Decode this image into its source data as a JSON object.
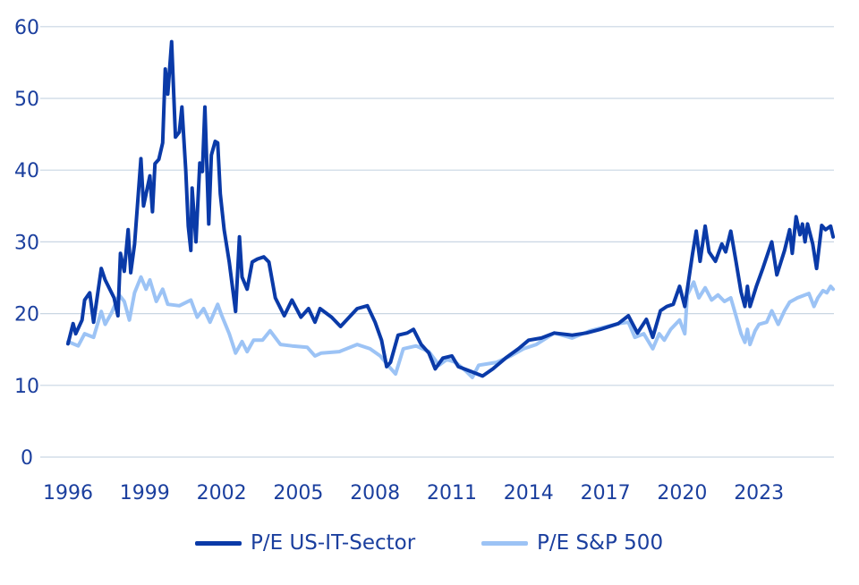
{
  "chart_data": {
    "type": "line",
    "title": "",
    "xlabel": "",
    "ylabel": "",
    "xlim": [
      1996,
      2025.9
    ],
    "ylim": [
      0,
      60
    ],
    "x_ticks": [
      "1996",
      "1999",
      "2002",
      "2005",
      "2008",
      "2011",
      "2014",
      "2017",
      "2020",
      "2023"
    ],
    "y_ticks": [
      "0",
      "10",
      "20",
      "30",
      "40",
      "50",
      "60"
    ],
    "grid": "horizontal",
    "legend_position": "bottom",
    "series": [
      {
        "name": "P/E US-IT-Sector",
        "color": "#0a3aa8",
        "points": [
          [
            1996.0,
            15.8
          ],
          [
            1996.2,
            18.6
          ],
          [
            1996.3,
            17.2
          ],
          [
            1996.55,
            19.1
          ],
          [
            1996.65,
            21.9
          ],
          [
            1996.85,
            22.9
          ],
          [
            1997.0,
            18.8
          ],
          [
            1997.3,
            26.3
          ],
          [
            1997.45,
            24.7
          ],
          [
            1997.8,
            22.2
          ],
          [
            1997.95,
            19.7
          ],
          [
            1998.05,
            28.4
          ],
          [
            1998.2,
            25.9
          ],
          [
            1998.35,
            31.7
          ],
          [
            1998.45,
            25.7
          ],
          [
            1998.6,
            29.7
          ],
          [
            1998.85,
            41.6
          ],
          [
            1998.95,
            35.0
          ],
          [
            1999.2,
            39.2
          ],
          [
            1999.3,
            34.2
          ],
          [
            1999.4,
            40.9
          ],
          [
            1999.55,
            41.5
          ],
          [
            1999.7,
            43.8
          ],
          [
            1999.8,
            54.1
          ],
          [
            1999.9,
            50.6
          ],
          [
            2000.05,
            57.9
          ],
          [
            2000.2,
            44.6
          ],
          [
            2000.35,
            45.3
          ],
          [
            2000.45,
            48.8
          ],
          [
            2000.6,
            40.0
          ],
          [
            2000.7,
            32.2
          ],
          [
            2000.8,
            28.8
          ],
          [
            2000.85,
            37.5
          ],
          [
            2001.0,
            30.0
          ],
          [
            2001.15,
            41.0
          ],
          [
            2001.25,
            39.8
          ],
          [
            2001.35,
            48.8
          ],
          [
            2001.5,
            32.5
          ],
          [
            2001.6,
            42.1
          ],
          [
            2001.75,
            44.0
          ],
          [
            2001.85,
            43.8
          ],
          [
            2001.95,
            36.7
          ],
          [
            2002.1,
            31.7
          ],
          [
            2002.3,
            27.2
          ],
          [
            2002.55,
            20.3
          ],
          [
            2002.7,
            30.7
          ],
          [
            2002.8,
            25.1
          ],
          [
            2003.0,
            23.4
          ],
          [
            2003.2,
            27.2
          ],
          [
            2003.4,
            27.6
          ],
          [
            2003.65,
            27.9
          ],
          [
            2003.85,
            27.2
          ],
          [
            2004.1,
            22.2
          ],
          [
            2004.45,
            19.7
          ],
          [
            2004.75,
            21.9
          ],
          [
            2005.1,
            19.5
          ],
          [
            2005.4,
            20.7
          ],
          [
            2005.65,
            18.8
          ],
          [
            2005.85,
            20.7
          ],
          [
            2006.3,
            19.5
          ],
          [
            2006.65,
            18.2
          ],
          [
            2007.3,
            20.7
          ],
          [
            2007.7,
            21.1
          ],
          [
            2008.0,
            18.8
          ],
          [
            2008.25,
            16.3
          ],
          [
            2008.45,
            12.6
          ],
          [
            2008.6,
            13.2
          ],
          [
            2008.9,
            17.0
          ],
          [
            2009.25,
            17.3
          ],
          [
            2009.5,
            17.8
          ],
          [
            2009.8,
            15.7
          ],
          [
            2010.1,
            14.5
          ],
          [
            2010.35,
            12.3
          ],
          [
            2010.65,
            13.8
          ],
          [
            2011.0,
            14.1
          ],
          [
            2011.25,
            12.6
          ],
          [
            2011.7,
            12.0
          ],
          [
            2012.2,
            11.3
          ],
          [
            2012.6,
            12.3
          ],
          [
            2013.1,
            13.8
          ],
          [
            2013.6,
            15.1
          ],
          [
            2014.0,
            16.3
          ],
          [
            2014.5,
            16.6
          ],
          [
            2015.0,
            17.3
          ],
          [
            2015.7,
            17.0
          ],
          [
            2016.25,
            17.3
          ],
          [
            2016.8,
            17.8
          ],
          [
            2017.5,
            18.6
          ],
          [
            2017.9,
            19.7
          ],
          [
            2018.25,
            17.3
          ],
          [
            2018.6,
            19.2
          ],
          [
            2018.85,
            16.7
          ],
          [
            2019.15,
            20.4
          ],
          [
            2019.4,
            21.0
          ],
          [
            2019.65,
            21.3
          ],
          [
            2019.9,
            23.8
          ],
          [
            2020.1,
            21.0
          ],
          [
            2020.4,
            28.2
          ],
          [
            2020.55,
            31.5
          ],
          [
            2020.7,
            27.3
          ],
          [
            2020.9,
            32.2
          ],
          [
            2021.05,
            28.6
          ],
          [
            2021.3,
            27.3
          ],
          [
            2021.55,
            29.7
          ],
          [
            2021.7,
            28.6
          ],
          [
            2021.9,
            31.5
          ],
          [
            2022.1,
            27.3
          ],
          [
            2022.3,
            23.0
          ],
          [
            2022.45,
            21.0
          ],
          [
            2022.55,
            23.8
          ],
          [
            2022.65,
            21.0
          ],
          [
            2022.9,
            23.8
          ],
          [
            2023.15,
            26.3
          ],
          [
            2023.5,
            30.0
          ],
          [
            2023.7,
            25.4
          ],
          [
            2024.0,
            28.8
          ],
          [
            2024.2,
            31.7
          ],
          [
            2024.3,
            28.4
          ],
          [
            2024.45,
            33.5
          ],
          [
            2024.6,
            31.0
          ],
          [
            2024.7,
            32.5
          ],
          [
            2024.8,
            30.0
          ],
          [
            2024.9,
            32.5
          ],
          [
            2025.1,
            29.7
          ],
          [
            2025.25,
            26.3
          ],
          [
            2025.45,
            32.3
          ],
          [
            2025.6,
            31.7
          ],
          [
            2025.8,
            32.2
          ],
          [
            2025.9,
            30.7
          ]
        ]
      },
      {
        "name": "P/E S&P 500",
        "color": "#9cc3f5",
        "points": [
          [
            1996.0,
            16.1
          ],
          [
            1996.4,
            15.5
          ],
          [
            1996.65,
            17.2
          ],
          [
            1997.0,
            16.7
          ],
          [
            1997.3,
            20.3
          ],
          [
            1997.45,
            18.5
          ],
          [
            1997.7,
            20.1
          ],
          [
            1998.0,
            22.6
          ],
          [
            1998.2,
            21.7
          ],
          [
            1998.4,
            19.1
          ],
          [
            1998.6,
            22.9
          ],
          [
            1998.85,
            25.1
          ],
          [
            1999.05,
            23.4
          ],
          [
            1999.2,
            24.7
          ],
          [
            1999.45,
            21.7
          ],
          [
            1999.7,
            23.4
          ],
          [
            1999.9,
            21.3
          ],
          [
            2000.35,
            21.1
          ],
          [
            2000.8,
            21.9
          ],
          [
            2001.05,
            19.5
          ],
          [
            2001.3,
            20.7
          ],
          [
            2001.55,
            18.8
          ],
          [
            2001.85,
            21.3
          ],
          [
            2002.0,
            19.8
          ],
          [
            2002.3,
            17.2
          ],
          [
            2002.55,
            14.5
          ],
          [
            2002.8,
            16.1
          ],
          [
            2003.0,
            14.7
          ],
          [
            2003.25,
            16.3
          ],
          [
            2003.6,
            16.3
          ],
          [
            2003.9,
            17.6
          ],
          [
            2004.3,
            15.7
          ],
          [
            2004.75,
            15.5
          ],
          [
            2005.35,
            15.3
          ],
          [
            2005.65,
            14.1
          ],
          [
            2005.9,
            14.5
          ],
          [
            2006.6,
            14.7
          ],
          [
            2007.3,
            15.7
          ],
          [
            2007.8,
            15.1
          ],
          [
            2008.2,
            14.1
          ],
          [
            2008.55,
            12.6
          ],
          [
            2008.8,
            11.6
          ],
          [
            2009.1,
            15.1
          ],
          [
            2009.6,
            15.5
          ],
          [
            2010.1,
            14.7
          ],
          [
            2010.5,
            12.8
          ],
          [
            2010.8,
            13.6
          ],
          [
            2011.15,
            13.2
          ],
          [
            2011.55,
            12.0
          ],
          [
            2011.8,
            11.1
          ],
          [
            2012.05,
            12.8
          ],
          [
            2012.75,
            13.2
          ],
          [
            2013.3,
            14.1
          ],
          [
            2013.8,
            15.1
          ],
          [
            2014.3,
            15.7
          ],
          [
            2015.0,
            17.3
          ],
          [
            2015.7,
            16.6
          ],
          [
            2016.4,
            17.6
          ],
          [
            2017.5,
            18.6
          ],
          [
            2017.9,
            18.8
          ],
          [
            2018.15,
            16.7
          ],
          [
            2018.5,
            17.2
          ],
          [
            2018.85,
            15.1
          ],
          [
            2019.1,
            17.2
          ],
          [
            2019.3,
            16.3
          ],
          [
            2019.55,
            17.8
          ],
          [
            2019.9,
            19.1
          ],
          [
            2020.1,
            17.2
          ],
          [
            2020.2,
            22.6
          ],
          [
            2020.45,
            24.4
          ],
          [
            2020.65,
            22.2
          ],
          [
            2020.9,
            23.6
          ],
          [
            2021.15,
            21.9
          ],
          [
            2021.4,
            22.6
          ],
          [
            2021.65,
            21.7
          ],
          [
            2021.9,
            22.2
          ],
          [
            2022.1,
            19.7
          ],
          [
            2022.3,
            17.2
          ],
          [
            2022.45,
            16.0
          ],
          [
            2022.55,
            17.8
          ],
          [
            2022.65,
            15.7
          ],
          [
            2022.85,
            17.6
          ],
          [
            2023.0,
            18.5
          ],
          [
            2023.3,
            18.8
          ],
          [
            2023.5,
            20.4
          ],
          [
            2023.75,
            18.5
          ],
          [
            2024.0,
            20.4
          ],
          [
            2024.2,
            21.6
          ],
          [
            2024.5,
            22.2
          ],
          [
            2024.8,
            22.6
          ],
          [
            2024.95,
            22.8
          ],
          [
            2025.15,
            21.0
          ],
          [
            2025.3,
            22.2
          ],
          [
            2025.5,
            23.2
          ],
          [
            2025.65,
            22.9
          ],
          [
            2025.8,
            23.8
          ],
          [
            2025.9,
            23.4
          ]
        ]
      }
    ]
  },
  "colors": {
    "text": "#1b3f9e",
    "grid": "#c9d6e3"
  }
}
